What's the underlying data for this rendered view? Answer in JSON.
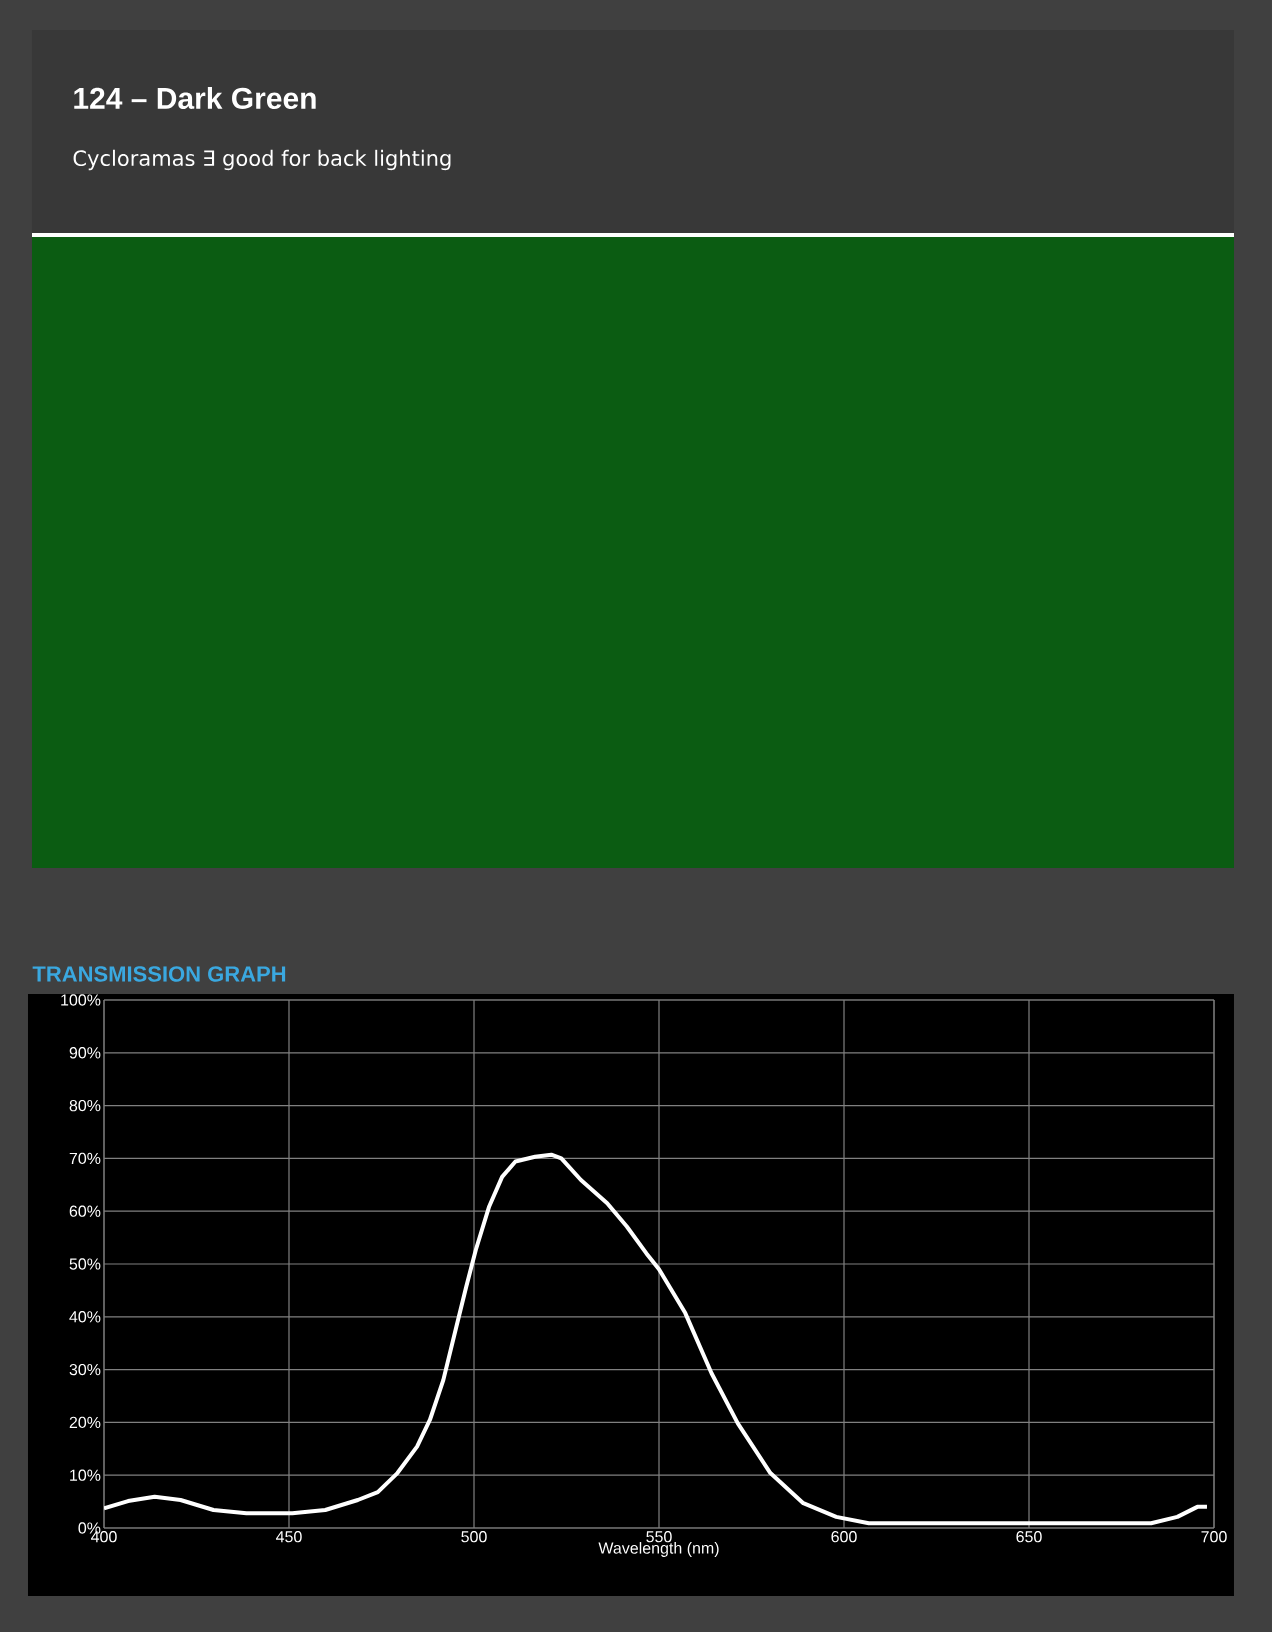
{
  "chart_data": {
    "type": "line",
    "title": "124 – Dark Green",
    "subtitle": "Cycloramas ∃ good for back lighting",
    "annotations": [
      "TRANSMISSION GRAPH"
    ],
    "xlabel": "Wavelength (nm)",
    "x": [
      400,
      406.5,
      413.7,
      420.7,
      429.6,
      438.5,
      450.9,
      459.8,
      468.6,
      474,
      479.3,
      484.6,
      488.1,
      491.7,
      495.2,
      497.9,
      500.5,
      504.1,
      507.6,
      511.2,
      516.5,
      520.9,
      523.6,
      528.9,
      536,
      541.3,
      546.6,
      550,
      557.1,
      564.2,
      571.3,
      580.1,
      589,
      597.9,
      606.7,
      631.6,
      658.2,
      683,
      690.1,
      695.5,
      698.1
    ],
    "series": [
      {
        "color": "#ffffff",
        "values": [
          3.7,
          5.1,
          5.9,
          5.3,
          3.4,
          2.8,
          2.8,
          3.4,
          5.3,
          6.8,
          10.4,
          15.4,
          20.5,
          28,
          38,
          45.7,
          52.7,
          60.9,
          66.5,
          69.4,
          70.3,
          70.7,
          70,
          65.9,
          61.5,
          57.1,
          52,
          49,
          40.7,
          29.3,
          19.8,
          10.4,
          4.7,
          2.1,
          0.9,
          0.9,
          0.9,
          0.9,
          2.1,
          4,
          4
        ]
      }
    ],
    "xlim": [
      400,
      700
    ],
    "ylim": [
      0,
      100
    ],
    "xticks": [
      400,
      450,
      500,
      550,
      600,
      650,
      700
    ],
    "yticks": [
      {
        "value": 0,
        "label": "0%"
      },
      {
        "value": 10,
        "label": "10%"
      },
      {
        "value": 20,
        "label": "20%"
      },
      {
        "value": 30,
        "label": "30%"
      },
      {
        "value": 40,
        "label": "40%"
      },
      {
        "value": 50,
        "label": "50%"
      },
      {
        "value": 60,
        "label": "60%"
      },
      {
        "value": 70,
        "label": "70%"
      },
      {
        "value": 80,
        "label": "80%"
      },
      {
        "value": 90,
        "label": "90%"
      },
      {
        "value": 100,
        "label": "100%"
      }
    ],
    "grid": true
  }
}
